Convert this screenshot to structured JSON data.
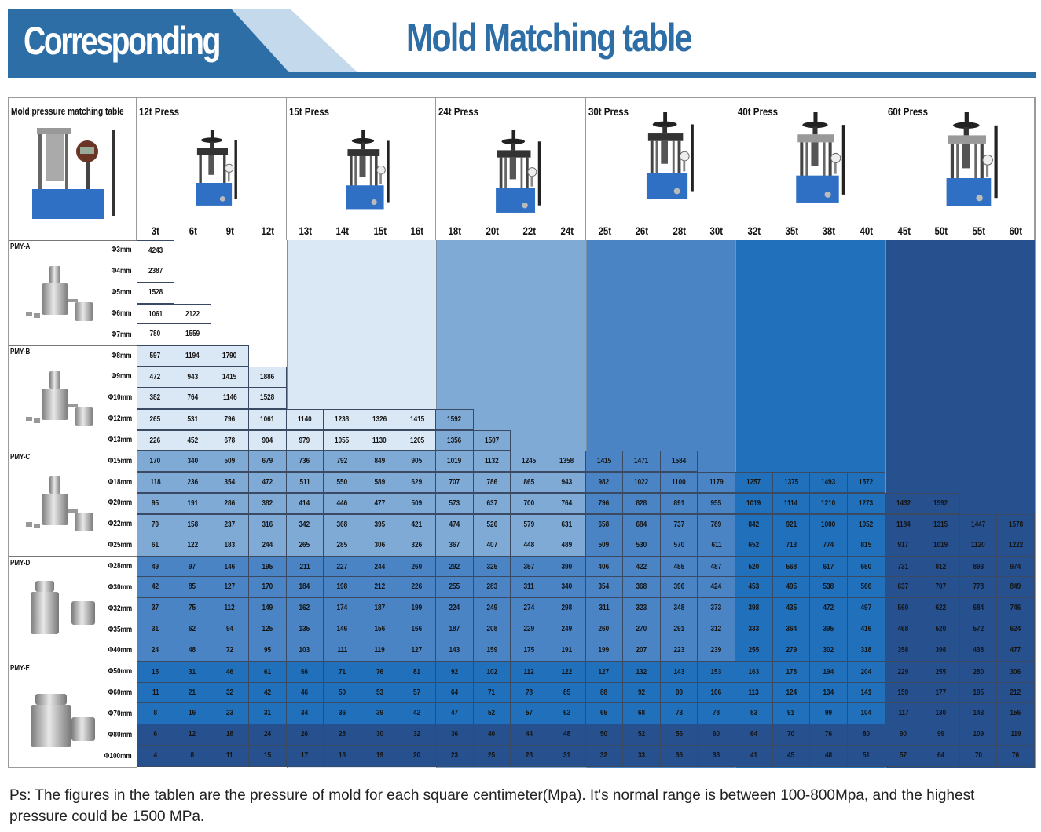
{
  "banner": {
    "left_label": "Corresponding",
    "title": "Mold Matching table",
    "accent_color": "#2e6ea6",
    "light_color": "#c5d9ec"
  },
  "table": {
    "corner_title": "Mold pressure matching table",
    "corner_image": "digital-pressure-gauge-press-photo",
    "presses": [
      {
        "label": "12t Press",
        "tonnages": [
          "3t",
          "6t",
          "9t",
          "12t"
        ],
        "zone_color": "#ffffff",
        "image": "12t-press-photo"
      },
      {
        "label": "15t Press",
        "tonnages": [
          "13t",
          "14t",
          "15t",
          "16t"
        ],
        "zone_color": "#dae7f4",
        "image": "15t-press-photo"
      },
      {
        "label": "24t Press",
        "tonnages": [
          "18t",
          "20t",
          "22t",
          "24t"
        ],
        "zone_color": "#7faad6",
        "image": "24t-press-photo"
      },
      {
        "label": "30t Press",
        "tonnages": [
          "25t",
          "26t",
          "28t",
          "30t"
        ],
        "zone_color": "#4a84c4",
        "image": "30t-press-photo"
      },
      {
        "label": "40t Press",
        "tonnages": [
          "32t",
          "35t",
          "38t",
          "40t"
        ],
        "zone_color": "#2070bb",
        "image": "40t-press-photo"
      },
      {
        "label": "60t Press",
        "tonnages": [
          "45t",
          "50t",
          "55t",
          "60t"
        ],
        "zone_color": "#26508e",
        "image": "60t-press-photo"
      }
    ],
    "molds": [
      {
        "name": "PMY-A",
        "image": "pmy-a-mold-photo",
        "rows": [
          {
            "diameter": "Φ3mm",
            "level": 0,
            "values": [
              "4243"
            ]
          },
          {
            "diameter": "Φ4mm",
            "level": 0,
            "values": [
              "2387"
            ]
          },
          {
            "diameter": "Φ5mm",
            "level": 0,
            "values": [
              "1528"
            ]
          },
          {
            "diameter": "Φ6mm",
            "level": 0,
            "values": [
              "1061",
              "2122"
            ]
          },
          {
            "diameter": "Φ7mm",
            "level": 0,
            "values": [
              "780",
              "1559"
            ]
          }
        ]
      },
      {
        "name": "PMY-B",
        "image": "pmy-b-mold-photo",
        "rows": [
          {
            "diameter": "Φ8mm",
            "level": 1,
            "values": [
              "597",
              "1194",
              "1790"
            ]
          },
          {
            "diameter": "Φ9mm",
            "level": 1,
            "values": [
              "472",
              "943",
              "1415",
              "1886"
            ]
          },
          {
            "diameter": "Φ10mm",
            "level": 1,
            "values": [
              "382",
              "764",
              "1146",
              "1528"
            ]
          },
          {
            "diameter": "Φ12mm",
            "level": 1,
            "values": [
              "265",
              "531",
              "796",
              "1061",
              "1140",
              "1238",
              "1326",
              "1415",
              "1592"
            ]
          },
          {
            "diameter": "Φ13mm",
            "level": 1,
            "values": [
              "226",
              "452",
              "678",
              "904",
              "979",
              "1055",
              "1130",
              "1205",
              "1356",
              "1507"
            ]
          }
        ]
      },
      {
        "name": "PMY-C",
        "image": "pmy-c-mold-photo",
        "rows": [
          {
            "diameter": "Φ15mm",
            "level": 2,
            "values": [
              "170",
              "340",
              "509",
              "679",
              "736",
              "792",
              "849",
              "905",
              "1019",
              "1132",
              "1245",
              "1358",
              "1415",
              "1471",
              "1584"
            ]
          },
          {
            "diameter": "Φ18mm",
            "level": 2,
            "values": [
              "118",
              "236",
              "354",
              "472",
              "511",
              "550",
              "589",
              "629",
              "707",
              "786",
              "865",
              "943",
              "982",
              "1022",
              "1100",
              "1179",
              "1257",
              "1375",
              "1493",
              "1572"
            ]
          },
          {
            "diameter": "Φ20mm",
            "level": 2,
            "values": [
              "95",
              "191",
              "286",
              "382",
              "414",
              "446",
              "477",
              "509",
              "573",
              "637",
              "700",
              "764",
              "796",
              "828",
              "891",
              "955",
              "1019",
              "1114",
              "1210",
              "1273",
              "1432",
              "1592"
            ]
          },
          {
            "diameter": "Φ22mm",
            "level": 2,
            "values": [
              "79",
              "158",
              "237",
              "316",
              "342",
              "368",
              "395",
              "421",
              "474",
              "526",
              "579",
              "631",
              "658",
              "684",
              "737",
              "789",
              "842",
              "921",
              "1000",
              "1052",
              "1184",
              "1315",
              "1447",
              "1578"
            ]
          },
          {
            "diameter": "Φ25mm",
            "level": 2,
            "values": [
              "61",
              "122",
              "183",
              "244",
              "265",
              "285",
              "306",
              "326",
              "367",
              "407",
              "448",
              "489",
              "509",
              "530",
              "570",
              "611",
              "652",
              "713",
              "774",
              "815",
              "917",
              "1019",
              "1120",
              "1222"
            ]
          }
        ]
      },
      {
        "name": "PMY-D",
        "image": "pmy-d-mold-photo",
        "rows": [
          {
            "diameter": "Φ28mm",
            "level": 3,
            "values": [
              "49",
              "97",
              "146",
              "195",
              "211",
              "227",
              "244",
              "260",
              "292",
              "325",
              "357",
              "390",
              "406",
              "422",
              "455",
              "487",
              "520",
              "568",
              "617",
              "650",
              "731",
              "812",
              "893",
              "974"
            ]
          },
          {
            "diameter": "Φ30mm",
            "level": 3,
            "values": [
              "42",
              "85",
              "127",
              "170",
              "184",
              "198",
              "212",
              "226",
              "255",
              "283",
              "311",
              "340",
              "354",
              "368",
              "396",
              "424",
              "453",
              "495",
              "538",
              "566",
              "637",
              "707",
              "778",
              "849"
            ]
          },
          {
            "diameter": "Φ32mm",
            "level": 3,
            "values": [
              "37",
              "75",
              "112",
              "149",
              "162",
              "174",
              "187",
              "199",
              "224",
              "249",
              "274",
              "298",
              "311",
              "323",
              "348",
              "373",
              "398",
              "435",
              "472",
              "497",
              "560",
              "622",
              "684",
              "746"
            ]
          },
          {
            "diameter": "Φ35mm",
            "level": 3,
            "values": [
              "31",
              "62",
              "94",
              "125",
              "135",
              "146",
              "156",
              "166",
              "187",
              "208",
              "229",
              "249",
              "260",
              "270",
              "291",
              "312",
              "333",
              "364",
              "395",
              "416",
              "468",
              "520",
              "572",
              "624"
            ]
          },
          {
            "diameter": "Φ40mm",
            "level": 3,
            "values": [
              "24",
              "48",
              "72",
              "95",
              "103",
              "111",
              "119",
              "127",
              "143",
              "159",
              "175",
              "191",
              "199",
              "207",
              "223",
              "239",
              "255",
              "279",
              "302",
              "318",
              "358",
              "398",
              "438",
              "477"
            ]
          }
        ]
      },
      {
        "name": "PMY-E",
        "image": "pmy-e-mold-photo",
        "rows": [
          {
            "diameter": "Φ50mm",
            "level": 4,
            "values": [
              "15",
              "31",
              "46",
              "61",
              "66",
              "71",
              "76",
              "81",
              "92",
              "102",
              "112",
              "122",
              "127",
              "132",
              "143",
              "153",
              "163",
              "178",
              "194",
              "204",
              "229",
              "255",
              "280",
              "306"
            ]
          },
          {
            "diameter": "Φ60mm",
            "level": 4,
            "values": [
              "11",
              "21",
              "32",
              "42",
              "46",
              "50",
              "53",
              "57",
              "64",
              "71",
              "78",
              "85",
              "88",
              "92",
              "99",
              "106",
              "113",
              "124",
              "134",
              "141",
              "159",
              "177",
              "195",
              "212"
            ]
          },
          {
            "diameter": "Φ70mm",
            "level": 4,
            "values": [
              "8",
              "16",
              "23",
              "31",
              "34",
              "36",
              "39",
              "42",
              "47",
              "52",
              "57",
              "62",
              "65",
              "68",
              "73",
              "78",
              "83",
              "91",
              "99",
              "104",
              "117",
              "130",
              "143",
              "156"
            ]
          },
          {
            "diameter": "Φ80mm",
            "level": 5,
            "values": [
              "6",
              "12",
              "18",
              "24",
              "26",
              "28",
              "30",
              "32",
              "36",
              "40",
              "44",
              "48",
              "50",
              "52",
              "56",
              "60",
              "64",
              "70",
              "76",
              "80",
              "90",
              "99",
              "109",
              "119"
            ]
          },
          {
            "diameter": "Φ100mm",
            "level": 5,
            "values": [
              "4",
              "8",
              "11",
              "15",
              "17",
              "18",
              "19",
              "20",
              "23",
              "25",
              "28",
              "31",
              "32",
              "33",
              "36",
              "38",
              "41",
              "45",
              "48",
              "51",
              "57",
              "64",
              "70",
              "76"
            ]
          }
        ]
      }
    ],
    "level_colors": [
      "#ffffff",
      "#dae7f4",
      "#7faad6",
      "#4a84c4",
      "#2070bb",
      "#26508e"
    ]
  },
  "note": "Ps: The figures in the tablen are the pressure of mold for each square centimeter(Mpa). It's normal range is between 100-800Mpa, and the highest pressure could be 1500 MPa."
}
